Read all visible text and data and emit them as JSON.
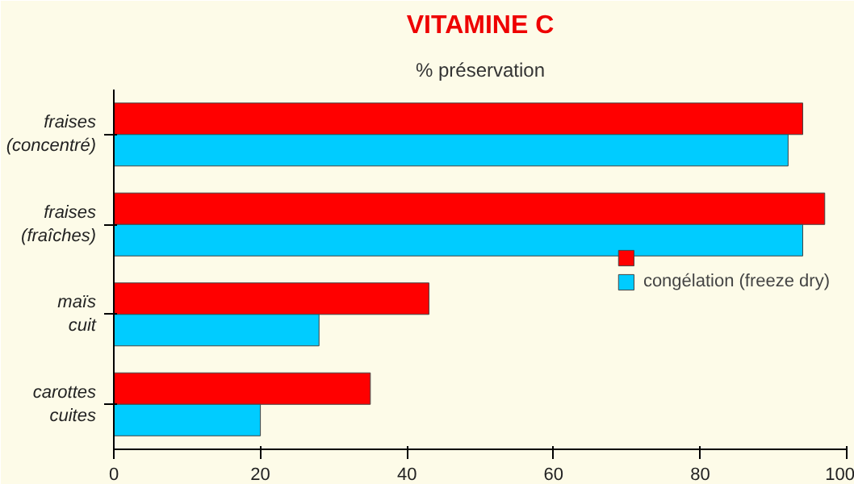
{
  "chart_data": {
    "type": "bar",
    "orientation": "horizontal",
    "title": "VITAMINE C",
    "subtitle": "% préservation",
    "categories": [
      "fraises\n(concentré)",
      "fraises\n(fraîches)",
      "maïs\ncuit",
      "carottes\ncuites"
    ],
    "series": [
      {
        "color": "#ff0000",
        "values": [
          94,
          97,
          43,
          35
        ]
      },
      {
        "name": "congélation (freeze dry)",
        "color": "#00ccff",
        "values": [
          92,
          94,
          28,
          20
        ]
      }
    ],
    "xlim": [
      0,
      100
    ],
    "xticks": [
      0,
      20,
      40,
      60,
      80,
      100
    ],
    "grid": false,
    "legend": "right"
  }
}
